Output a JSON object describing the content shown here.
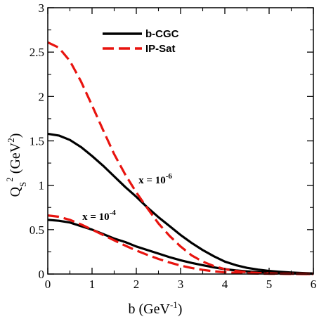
{
  "chart_data": {
    "type": "line",
    "xlabel": "b (GeV⁻¹)",
    "ylabel": "Q_S² (GeV²)",
    "xlim": [
      0,
      6
    ],
    "ylim": [
      0,
      3
    ],
    "x_ticks": [
      "0",
      "1",
      "2",
      "3",
      "4",
      "5",
      "6"
    ],
    "y_ticks": [
      "0",
      "0.5",
      "1",
      "1.5",
      "2",
      "2.5",
      "3"
    ],
    "grid": false,
    "legend_position": "top-center",
    "legend": [
      {
        "label": "b-CGC",
        "color": "#000000",
        "style": "solid"
      },
      {
        "label": "IP-Sat",
        "color": "#e8140f",
        "style": "dashed"
      }
    ],
    "annotations": [
      {
        "text": "x = 10⁻⁶",
        "x": 2.05,
        "y": 1.06
      },
      {
        "text": "x = 10⁻⁴",
        "x": 0.78,
        "y": 0.65
      }
    ],
    "series": [
      {
        "name": "b-CGC",
        "group": "x = 10⁻⁶",
        "color": "#000000",
        "style": "solid",
        "x": [
          0,
          0.25,
          0.5,
          0.75,
          1.0,
          1.25,
          1.5,
          1.75,
          2.0,
          2.25,
          2.5,
          2.75,
          3.0,
          3.25,
          3.5,
          3.75,
          4.0,
          4.25,
          4.5,
          4.75,
          5.0,
          5.25,
          5.5,
          5.75,
          6.0
        ],
        "y": [
          1.58,
          1.56,
          1.51,
          1.43,
          1.33,
          1.22,
          1.1,
          0.98,
          0.87,
          0.75,
          0.64,
          0.54,
          0.44,
          0.35,
          0.27,
          0.2,
          0.14,
          0.1,
          0.07,
          0.05,
          0.035,
          0.025,
          0.017,
          0.011,
          0.006
        ]
      },
      {
        "name": "b-CGC",
        "group": "x = 10⁻⁴",
        "color": "#000000",
        "style": "solid",
        "x": [
          0,
          0.25,
          0.5,
          0.75,
          1.0,
          1.25,
          1.5,
          1.75,
          2.0,
          2.25,
          2.5,
          2.75,
          3.0,
          3.25,
          3.5,
          3.75,
          4.0,
          4.25,
          4.5,
          4.75,
          5.0,
          5.25,
          5.5,
          5.75,
          6.0
        ],
        "y": [
          0.61,
          0.6,
          0.58,
          0.54,
          0.5,
          0.45,
          0.4,
          0.36,
          0.31,
          0.27,
          0.23,
          0.19,
          0.155,
          0.125,
          0.1,
          0.075,
          0.055,
          0.04,
          0.03,
          0.022,
          0.016,
          0.011,
          0.008,
          0.005,
          0.003
        ]
      },
      {
        "name": "IP-Sat",
        "group": "x = 10⁻⁶",
        "color": "#e8140f",
        "style": "dashed",
        "x": [
          0,
          0.25,
          0.5,
          0.75,
          1.0,
          1.25,
          1.5,
          1.75,
          2.0,
          2.25,
          2.5,
          2.75,
          3.0,
          3.25,
          3.5,
          3.75,
          4.0,
          4.25,
          4.5,
          4.75,
          5.0,
          5.25,
          5.5,
          5.75,
          6.0
        ],
        "y": [
          2.61,
          2.55,
          2.4,
          2.17,
          1.9,
          1.62,
          1.35,
          1.12,
          0.92,
          0.74,
          0.57,
          0.43,
          0.31,
          0.21,
          0.14,
          0.09,
          0.055,
          0.035,
          0.02,
          0.012,
          0.007,
          0.004,
          0.002,
          0.001,
          0.0
        ]
      },
      {
        "name": "IP-Sat",
        "group": "x = 10⁻⁴",
        "color": "#e8140f",
        "style": "dashed",
        "x": [
          0,
          0.25,
          0.5,
          0.75,
          1.0,
          1.25,
          1.5,
          1.75,
          2.0,
          2.25,
          2.5,
          2.75,
          3.0,
          3.25,
          3.5,
          3.75,
          4.0,
          4.25,
          4.5,
          4.75,
          5.0,
          5.25,
          5.5,
          5.75,
          6.0
        ],
        "y": [
          0.66,
          0.645,
          0.61,
          0.56,
          0.5,
          0.44,
          0.38,
          0.32,
          0.265,
          0.215,
          0.17,
          0.13,
          0.095,
          0.068,
          0.047,
          0.031,
          0.02,
          0.013,
          0.008,
          0.005,
          0.003,
          0.002,
          0.001,
          0.0,
          0.0
        ]
      }
    ]
  }
}
